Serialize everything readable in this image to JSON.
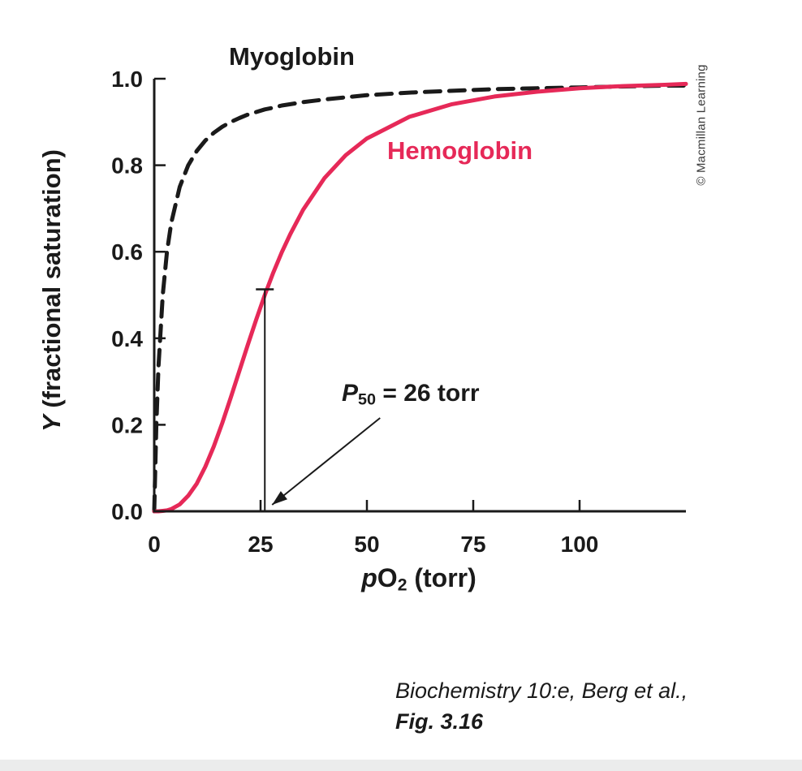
{
  "figure": {
    "copyright": "© Macmillan Learning"
  },
  "axes": {
    "y_label_italic": "Y",
    "y_label_rest": " (fractional saturation)",
    "x_label_italic": "p",
    "x_label_main": "O",
    "x_label_sub": "2",
    "x_label_rest": " (torr)"
  },
  "annotation": {
    "symbol": "P",
    "subscript": "50",
    "rest": " = 26 torr"
  },
  "caption": {
    "line1": "Biochemistry 10:e, Berg et al.,",
    "line2": "Fig. 3.16"
  },
  "colors": {
    "axis": "#1a1a1a",
    "myoglobin": "#1a1a1a",
    "hemoglobin": "#e62958"
  },
  "chart_data": {
    "type": "line",
    "title": "",
    "xlabel": "pO2 (torr)",
    "ylabel": "Y (fractional saturation)",
    "xlim": [
      0,
      125
    ],
    "ylim": [
      0,
      1.0
    ],
    "x_ticks": [
      0,
      25,
      50,
      75,
      100
    ],
    "x_tick_labels": [
      "0",
      "25",
      "50",
      "75",
      "100"
    ],
    "y_ticks": [
      0,
      0.2,
      0.4,
      0.6,
      0.8,
      1.0
    ],
    "y_tick_labels": [
      "0.0",
      "0.2",
      "0.4",
      "0.6",
      "0.8",
      "1.0"
    ],
    "grid": false,
    "legend": "inline-curve-labels",
    "x": [
      0,
      0.5,
      1,
      2,
      3,
      4,
      6,
      8,
      10,
      12,
      14,
      16,
      18,
      20,
      22,
      24,
      26,
      28,
      30,
      32,
      35,
      40,
      45,
      50,
      60,
      70,
      80,
      90,
      100,
      110,
      120,
      125
    ],
    "series": [
      {
        "name": "Myoglobin",
        "style": "dashed",
        "color": "#1a1a1a",
        "values": [
          0,
          0.2,
          0.333,
          0.5,
          0.6,
          0.667,
          0.75,
          0.8,
          0.833,
          0.857,
          0.875,
          0.889,
          0.9,
          0.909,
          0.917,
          0.923,
          0.929,
          0.933,
          0.938,
          0.941,
          0.946,
          0.952,
          0.957,
          0.962,
          0.968,
          0.972,
          0.976,
          0.978,
          0.98,
          0.982,
          0.984,
          0.984
        ]
      },
      {
        "name": "Hemoglobin",
        "style": "solid",
        "color": "#e62958",
        "values": [
          0,
          0,
          0,
          0.001,
          0.002,
          0.005,
          0.016,
          0.036,
          0.064,
          0.103,
          0.15,
          0.204,
          0.263,
          0.324,
          0.385,
          0.444,
          0.5,
          0.552,
          0.599,
          0.641,
          0.697,
          0.77,
          0.823,
          0.862,
          0.912,
          0.941,
          0.959,
          0.97,
          0.978,
          0.983,
          0.986,
          0.988
        ]
      }
    ],
    "annotation": {
      "text": "P50 = 26 torr",
      "x_torr": 26,
      "y_saturation": 0.5
    }
  }
}
